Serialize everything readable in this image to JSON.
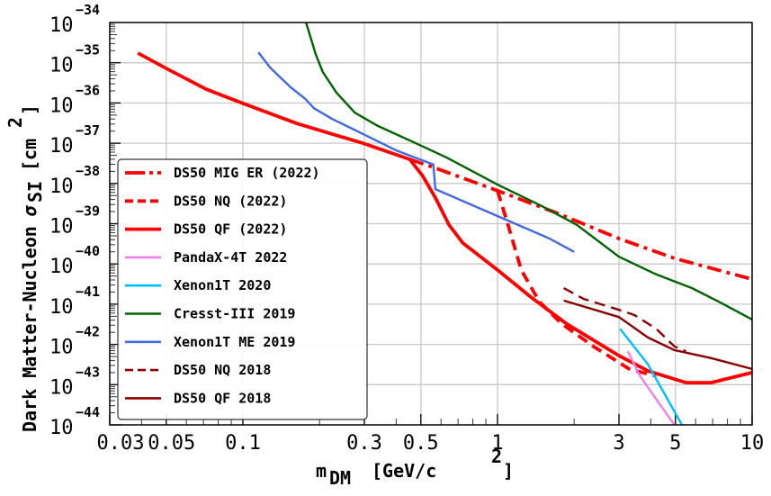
{
  "chart_data": {
    "type": "line",
    "title": "",
    "xlabel": "m_DM [GeV/c^2]",
    "xlabel_parts": {
      "main": "m",
      "sub": "DM",
      "unit": "[GeV/c",
      "sup": "2",
      "close": "]"
    },
    "ylabel": "Dark Matter-Nucleon σ_SI [cm^2]",
    "ylabel_parts": {
      "main": "Dark Matter-Nucleon ",
      "sigma": "σ",
      "sub": "SI",
      "unit": "[cm",
      "sup": "2",
      "close": "]"
    },
    "xscale": "log",
    "yscale": "log",
    "xlim": [
      0.03,
      10
    ],
    "ylim_exponent": [
      -44,
      -34
    ],
    "grid": true,
    "legend_position": "left",
    "x_ticks": [
      {
        "value": 0.03,
        "label": "0.03"
      },
      {
        "value": 0.05,
        "label": "0.05"
      },
      {
        "value": 0.1,
        "label": "0.1"
      },
      {
        "value": 0.3,
        "label": "0.3"
      },
      {
        "value": 0.5,
        "label": "0.5"
      },
      {
        "value": 1,
        "label": "1"
      },
      {
        "value": 3,
        "label": "3"
      },
      {
        "value": 5,
        "label": "5"
      },
      {
        "value": 10,
        "label": "10"
      }
    ],
    "y_ticks": [
      {
        "exp": -34,
        "base": "10",
        "label": "−34"
      },
      {
        "exp": -35,
        "base": "10",
        "label": "−35"
      },
      {
        "exp": -36,
        "base": "10",
        "label": "−36"
      },
      {
        "exp": -37,
        "base": "10",
        "label": "−37"
      },
      {
        "exp": -38,
        "base": "10",
        "label": "−38"
      },
      {
        "exp": -39,
        "base": "10",
        "label": "−39"
      },
      {
        "exp": -40,
        "base": "10",
        "label": "−40"
      },
      {
        "exp": -41,
        "base": "10",
        "label": "−41"
      },
      {
        "exp": -42,
        "base": "10",
        "label": "−42"
      },
      {
        "exp": -43,
        "base": "10",
        "label": "−43"
      },
      {
        "exp": -44,
        "base": "10",
        "label": "−44"
      }
    ],
    "x_grid": [
      0.05,
      0.1,
      0.3,
      0.5,
      1,
      3,
      5
    ],
    "series": [
      {
        "name": "DS50 MIG ER (2022)",
        "color": "#ff0000",
        "style": "dashdot",
        "weight": "thick",
        "x": [
          0.452,
          0.56,
          1.0,
          1.72,
          3.0,
          4.95,
          10
        ],
        "log10_y": [
          -37.4,
          -37.6,
          -38.18,
          -38.74,
          -39.37,
          -39.86,
          -40.38
        ]
      },
      {
        "name": "DS50 NQ (2022)",
        "color": "#ff0000",
        "style": "dashed",
        "weight": "thick",
        "x": [
          1.0,
          1.1,
          1.24,
          1.46,
          1.79,
          2.38,
          3.29,
          4.2
        ],
        "log10_y": [
          -38.18,
          -39.03,
          -40.15,
          -40.94,
          -41.49,
          -42.05,
          -42.61,
          -42.79
        ]
      },
      {
        "name": "DS50 QF (2022)",
        "color": "#ff0000",
        "style": "solid",
        "weight": "thick",
        "x": [
          0.0387,
          0.05,
          0.0719,
          0.1,
          0.163,
          0.296,
          0.452,
          0.507,
          0.571,
          0.645,
          0.731,
          1.0,
          1.35,
          1.87,
          3.0,
          3.9,
          5.5,
          6.9,
          10
        ],
        "log10_y": [
          -34.76,
          -35.14,
          -35.66,
          -36.01,
          -36.51,
          -37.0,
          -37.4,
          -37.8,
          -38.36,
          -39.03,
          -39.48,
          -40.15,
          -40.82,
          -41.49,
          -42.28,
          -42.66,
          -42.95,
          -42.95,
          -42.7
        ]
      },
      {
        "name": "PandaX-4T 2022",
        "color": "#ee82ee",
        "style": "solid",
        "weight": "normal",
        "x": [
          3.25,
          3.6,
          4.0,
          4.95
        ],
        "log10_y": [
          -42.17,
          -42.75,
          -43.17,
          -44.0
        ]
      },
      {
        "name": "Xenon1T 2020",
        "color": "#00bfff",
        "style": "solid",
        "weight": "normal",
        "x": [
          3.03,
          3.9,
          5.3
        ],
        "log10_y": [
          -41.61,
          -42.5,
          -44.0
        ]
      },
      {
        "name": "Cresst-III 2019",
        "color": "#006400",
        "style": "solid",
        "weight": "normal",
        "x": [
          0.177,
          0.193,
          0.206,
          0.233,
          0.275,
          0.339,
          0.47,
          0.633,
          1.0,
          1.47,
          2.05,
          3.0,
          4.2,
          5.8,
          7.4,
          10
        ],
        "log10_y": [
          -34.0,
          -34.78,
          -35.23,
          -35.74,
          -36.24,
          -36.57,
          -36.98,
          -37.36,
          -38.03,
          -38.54,
          -39.03,
          -39.82,
          -40.26,
          -40.6,
          -40.94,
          -41.38
        ]
      },
      {
        "name": "Xenon1T ME 2019",
        "color": "#4169e1",
        "style": "solid",
        "weight": "normal",
        "x": [
          0.115,
          0.128,
          0.154,
          0.176,
          0.19,
          0.223,
          0.296,
          0.4,
          0.56,
          0.57,
          1.0,
          1.6,
          2.0
        ],
        "log10_y": [
          -34.74,
          -35.12,
          -35.61,
          -35.9,
          -36.13,
          -36.39,
          -36.77,
          -37.18,
          -37.53,
          -38.14,
          -38.81,
          -39.37,
          -39.7
        ]
      },
      {
        "name": "DS50 NQ 2018",
        "color": "#8b0000",
        "style": "dashed",
        "weight": "normal",
        "x": [
          1.82,
          2.18,
          3.0,
          3.45,
          4.2,
          4.95,
          5.5
        ],
        "log10_y": [
          -40.6,
          -40.87,
          -41.14,
          -41.27,
          -41.61,
          -42.05,
          -42.17
        ]
      },
      {
        "name": "DS50 QF 2018",
        "color": "#8b0000",
        "style": "solid",
        "weight": "normal",
        "x": [
          1.82,
          3.0,
          3.9,
          4.95,
          6.9,
          10
        ],
        "log10_y": [
          -40.91,
          -41.32,
          -41.83,
          -42.14,
          -42.34,
          -42.61
        ]
      }
    ]
  }
}
